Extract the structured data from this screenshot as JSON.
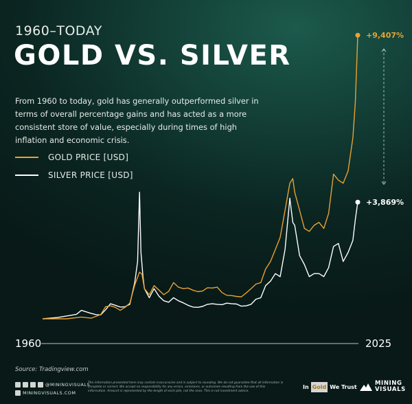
{
  "header": {
    "kicker": "1960–TODAY",
    "title": "GOLD VS. SILVER",
    "description": "From 1960 to today, gold has generally outperformed silver in terms of overall percentage gains and has acted as a more consistent store of value, especially during times of high inflation and economic crisis."
  },
  "colors": {
    "gold": "#e9a233",
    "silver": "#ffffff",
    "axis": "#cfd8d4"
  },
  "chart_data": {
    "type": "line",
    "xlabel": "",
    "ylabel": "",
    "x_start_label": "1960",
    "x_end_label": "2025",
    "xlim": [
      1960,
      2025
    ],
    "ylim": [
      0,
      9800
    ],
    "unit": "percent gain since 1960",
    "legend_placement": "top-left",
    "grid": false,
    "series": [
      {
        "name": "GOLD PRICE [USD]",
        "color": "#e9a233",
        "end_label": "+9,407%",
        "x": [
          1960,
          1965,
          1968,
          1970,
          1971,
          1972,
          1973,
          1974,
          1975,
          1976,
          1977,
          1978,
          1979,
          1980,
          1980.5,
          1981,
          1982,
          1983,
          1984,
          1985,
          1986,
          1987,
          1988,
          1989,
          1990,
          1991,
          1992,
          1993,
          1994,
          1995,
          1996,
          1997,
          1998,
          1999,
          2000,
          2001,
          2002,
          2003,
          2004,
          2005,
          2006,
          2007,
          2008,
          2009,
          2010,
          2011,
          2011.6,
          2012,
          2013,
          2014,
          2015,
          2016,
          2017,
          2018,
          2019,
          2020,
          2021,
          2022,
          2023,
          2024,
          2024.5,
          2025
        ],
        "y": [
          0,
          0,
          60,
          20,
          80,
          140,
          400,
          430,
          380,
          280,
          380,
          520,
          1120,
          1550,
          1480,
          1000,
          800,
          1100,
          950,
          800,
          910,
          1200,
          1050,
          1000,
          1020,
          950,
          900,
          920,
          1030,
          1020,
          1050,
          870,
          780,
          770,
          740,
          730,
          860,
          1000,
          1150,
          1200,
          1650,
          1900,
          2300,
          2700,
          3600,
          4500,
          4650,
          4200,
          3600,
          3000,
          2900,
          3100,
          3200,
          3000,
          3500,
          4800,
          4600,
          4500,
          4900,
          6000,
          7200,
          9407
        ]
      },
      {
        "name": "SILVER PRICE [USD]",
        "color": "#ffffff",
        "end_label": "+3,869%",
        "x": [
          1960,
          1963,
          1966,
          1967,
          1968,
          1970,
          1971,
          1972,
          1973,
          1974,
          1975,
          1976,
          1977,
          1978,
          1979,
          1979.6,
          1980,
          1980.3,
          1980.7,
          1981,
          1982,
          1983,
          1984,
          1985,
          1986,
          1987,
          1988,
          1989,
          1990,
          1991,
          1992,
          1993,
          1994,
          1995,
          1996,
          1997,
          1998,
          1999,
          2000,
          2001,
          2002,
          2003,
          2004,
          2005,
          2006,
          2007,
          2008,
          2009,
          2010,
          2011,
          2011.6,
          2012,
          2013,
          2014,
          2015,
          2016,
          2017,
          2018,
          2019,
          2020,
          2021,
          2022,
          2023,
          2024,
          2024.5,
          2025
        ],
        "y": [
          0,
          40,
          120,
          150,
          280,
          180,
          140,
          130,
          300,
          500,
          450,
          390,
          400,
          480,
          1200,
          1900,
          4200,
          2200,
          1400,
          1000,
          700,
          1000,
          750,
          600,
          550,
          700,
          600,
          530,
          450,
          390,
          380,
          410,
          480,
          500,
          480,
          470,
          520,
          500,
          490,
          420,
          430,
          480,
          650,
          700,
          1100,
          1250,
          1500,
          1400,
          2300,
          4000,
          3200,
          3100,
          2100,
          1800,
          1400,
          1500,
          1500,
          1400,
          1700,
          2400,
          2500,
          1900,
          2200,
          2600,
          3300,
          3869
        ]
      }
    ]
  },
  "source": "Source: Tradingview.com",
  "footer": {
    "handle": "@MININGVISUALS",
    "website": "MININGVISUALS.COM",
    "disclaimer": "The information presented here may contain inaccuracies and is subject to rounding. We do not guarantee that all information is complete or correct. We accept no responsibility for any errors, omissions, or outcomes resulting from the use of this information. Amount is represented by the length of each pile, not the area. This is not investment advice.",
    "brand1_in": "In",
    "brand1_gold": "Gold",
    "brand1_trust": "We Trust",
    "brand2_line1": "MINING",
    "brand2_line2": "VISUALS"
  }
}
